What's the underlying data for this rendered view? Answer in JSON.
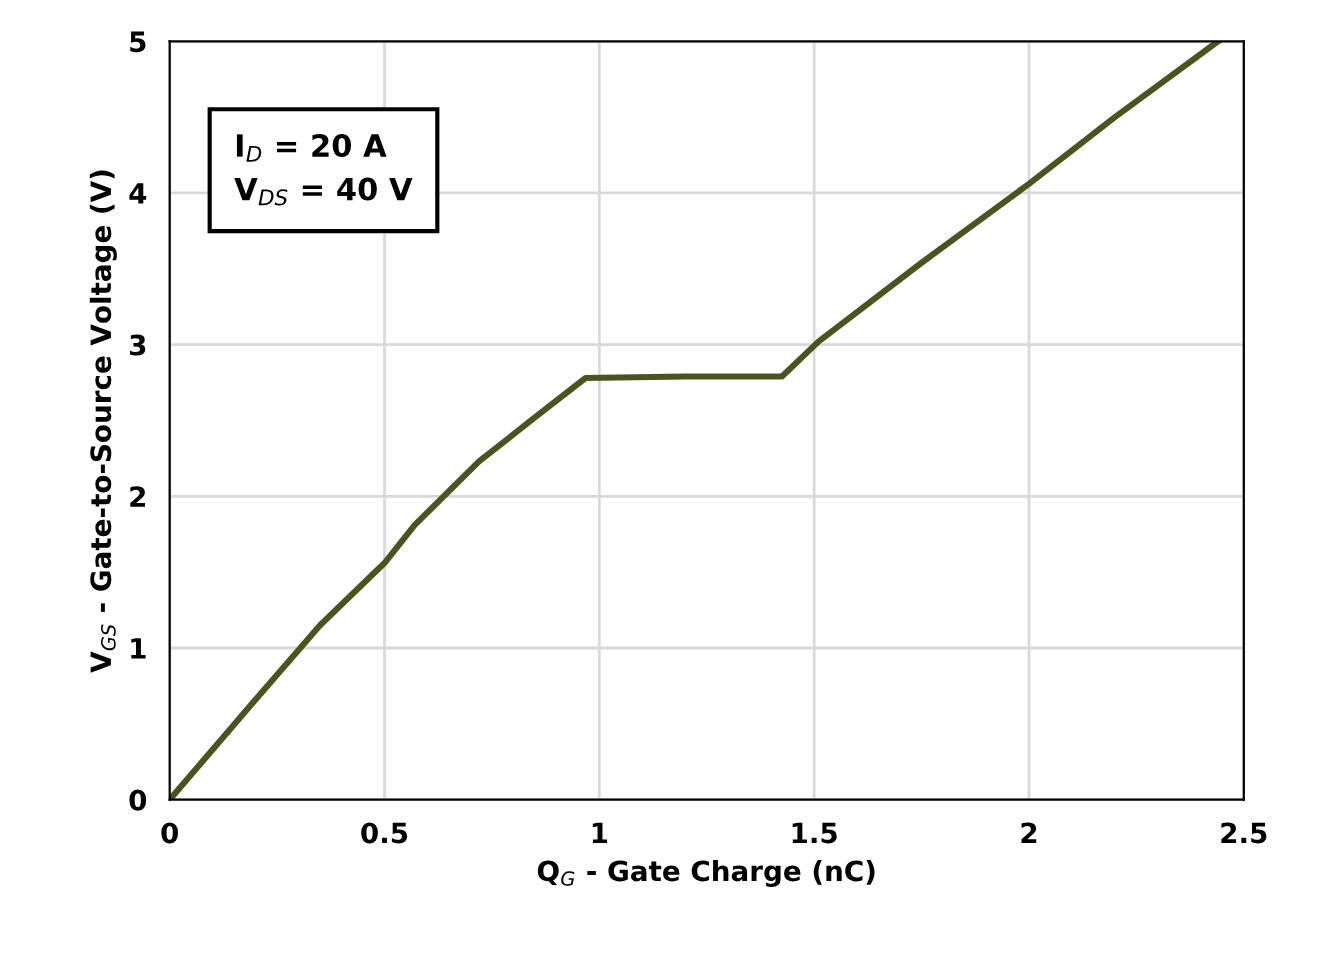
{
  "chart_data": {
    "type": "line",
    "xlabel": "Q$_{G}$ - Gate Charge (nC)",
    "ylabel": "V$_{GS}$ - Gate-to-Source Voltage (V)",
    "annotations": [
      "I$_{D}$ = 20 A\nV$_{DS}$ = 40 V"
    ],
    "x": [
      0,
      0.2,
      0.35,
      0.5,
      0.57,
      0.72,
      0.85,
      0.968,
      1.2,
      1.425,
      1.51,
      1.75,
      2.0,
      2.2,
      2.44
    ],
    "series": [
      {
        "color": "#4a5420",
        "values": [
          0,
          0.66,
          1.15,
          1.56,
          1.81,
          2.23,
          2.52,
          2.78,
          2.79,
          2.79,
          3.02,
          3.54,
          4.06,
          4.5,
          5.0
        ]
      }
    ],
    "xlim": [
      0,
      2.5
    ],
    "ylim": [
      0,
      5
    ],
    "xticks": [
      0,
      0.5,
      1,
      1.5,
      2,
      2.5
    ],
    "yticks": [
      0,
      1,
      2,
      3,
      4,
      5
    ],
    "grid": true,
    "legend": false
  }
}
